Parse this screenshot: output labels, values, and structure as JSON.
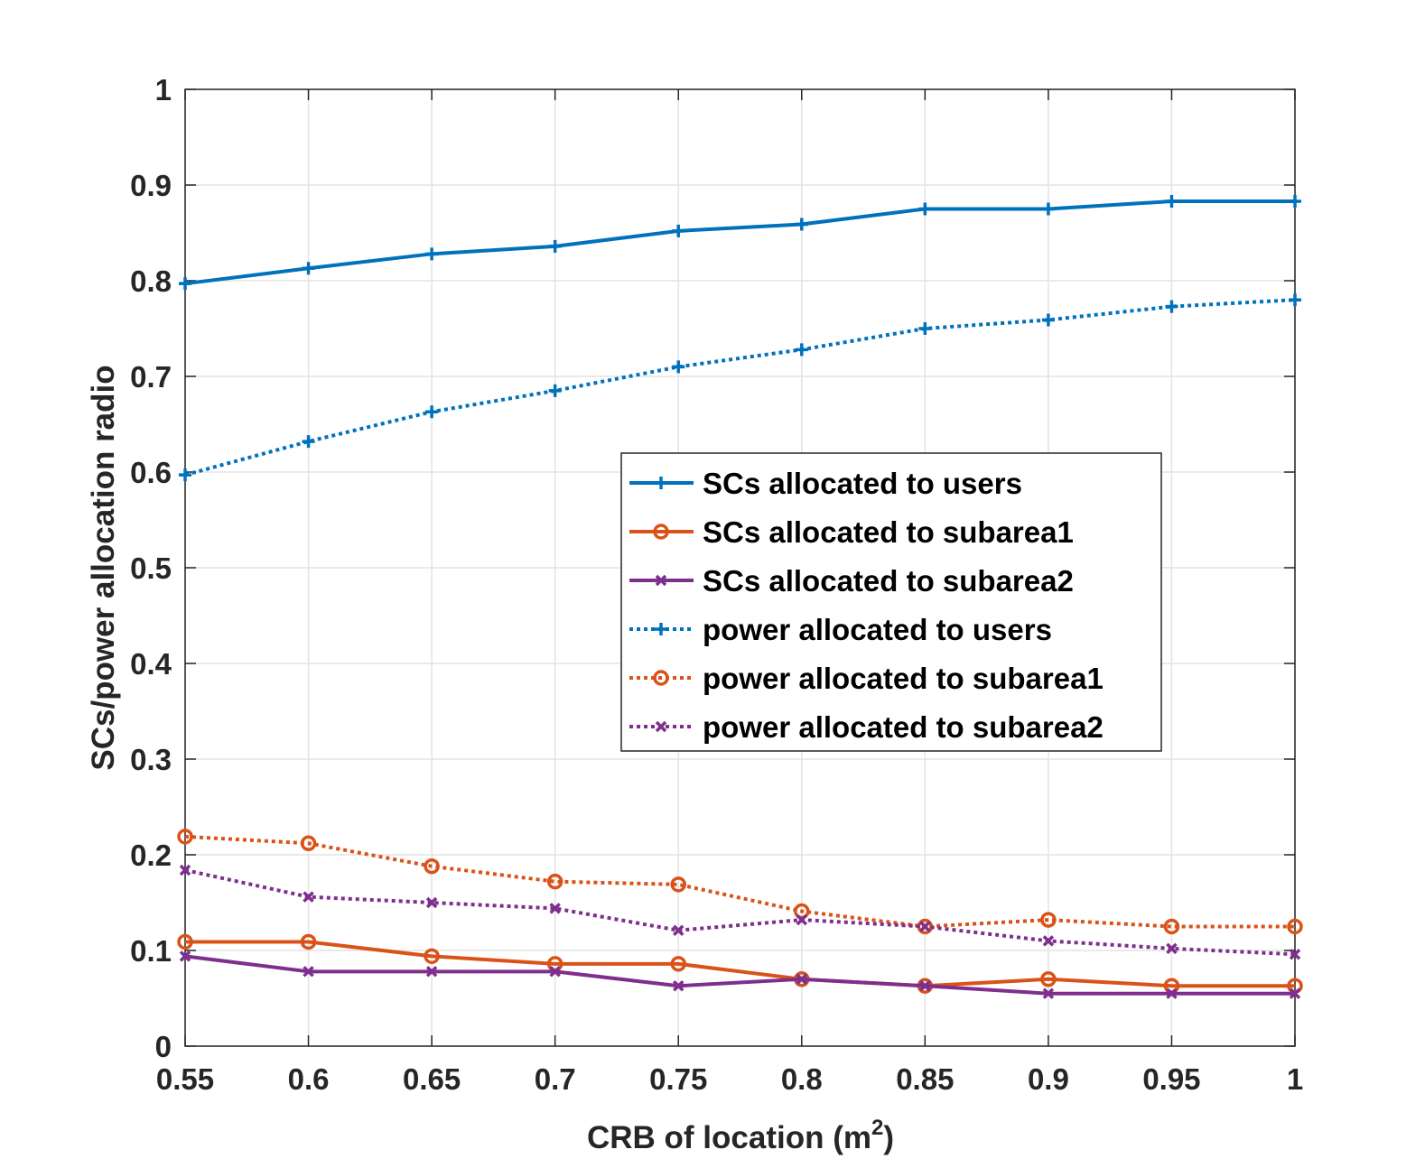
{
  "chart_data": {
    "type": "line",
    "title": "",
    "xlabel": "CRB of location (m",
    "xlabel_sup": "2",
    "xlabel_suffix": ")",
    "ylabel": "SCs/power allocation radio",
    "x": [
      0.55,
      0.6,
      0.65,
      0.7,
      0.75,
      0.8,
      0.85,
      0.9,
      0.95,
      1
    ],
    "xlim": [
      0.55,
      1
    ],
    "ylim": [
      0,
      1
    ],
    "xticks": [
      0.55,
      0.6,
      0.65,
      0.7,
      0.75,
      0.8,
      0.85,
      0.9,
      0.95,
      1
    ],
    "xtick_labels": [
      "0.55",
      "0.6",
      "0.65",
      "0.7",
      "0.75",
      "0.8",
      "0.85",
      "0.9",
      "0.95",
      "1"
    ],
    "yticks": [
      0,
      0.1,
      0.2,
      0.3,
      0.4,
      0.5,
      0.6,
      0.7,
      0.8,
      0.9,
      1
    ],
    "ytick_labels": [
      "0",
      "0.1",
      "0.2",
      "0.3",
      "0.4",
      "0.5",
      "0.6",
      "0.7",
      "0.8",
      "0.9",
      "1"
    ],
    "grid": true,
    "legend_position": "center-right",
    "series": [
      {
        "name": "SCs allocated to users",
        "color": "#0072BD",
        "line": "solid",
        "marker": "plus",
        "values": [
          0.797,
          0.813,
          0.828,
          0.836,
          0.852,
          0.859,
          0.875,
          0.875,
          0.883,
          0.883
        ]
      },
      {
        "name": "SCs allocated to subarea1",
        "color": "#D95319",
        "line": "solid",
        "marker": "circle",
        "values": [
          0.109,
          0.109,
          0.094,
          0.086,
          0.086,
          0.07,
          0.063,
          0.07,
          0.063,
          0.063
        ]
      },
      {
        "name": "SCs allocated to subarea2",
        "color": "#7E2F8E",
        "line": "solid",
        "marker": "x",
        "values": [
          0.094,
          0.078,
          0.078,
          0.078,
          0.063,
          0.07,
          0.063,
          0.055,
          0.055,
          0.055
        ]
      },
      {
        "name": "power allocated to users",
        "color": "#0072BD",
        "line": "dotted",
        "marker": "plus",
        "values": [
          0.597,
          0.632,
          0.663,
          0.685,
          0.71,
          0.728,
          0.75,
          0.759,
          0.773,
          0.78
        ]
      },
      {
        "name": "power allocated to subarea1",
        "color": "#D95319",
        "line": "dotted",
        "marker": "circle",
        "values": [
          0.219,
          0.212,
          0.188,
          0.172,
          0.169,
          0.141,
          0.125,
          0.132,
          0.125,
          0.125
        ]
      },
      {
        "name": "power allocated to subarea2",
        "color": "#7E2F8E",
        "line": "dotted",
        "marker": "x",
        "values": [
          0.184,
          0.156,
          0.15,
          0.144,
          0.121,
          0.132,
          0.125,
          0.11,
          0.102,
          0.096
        ]
      }
    ]
  }
}
